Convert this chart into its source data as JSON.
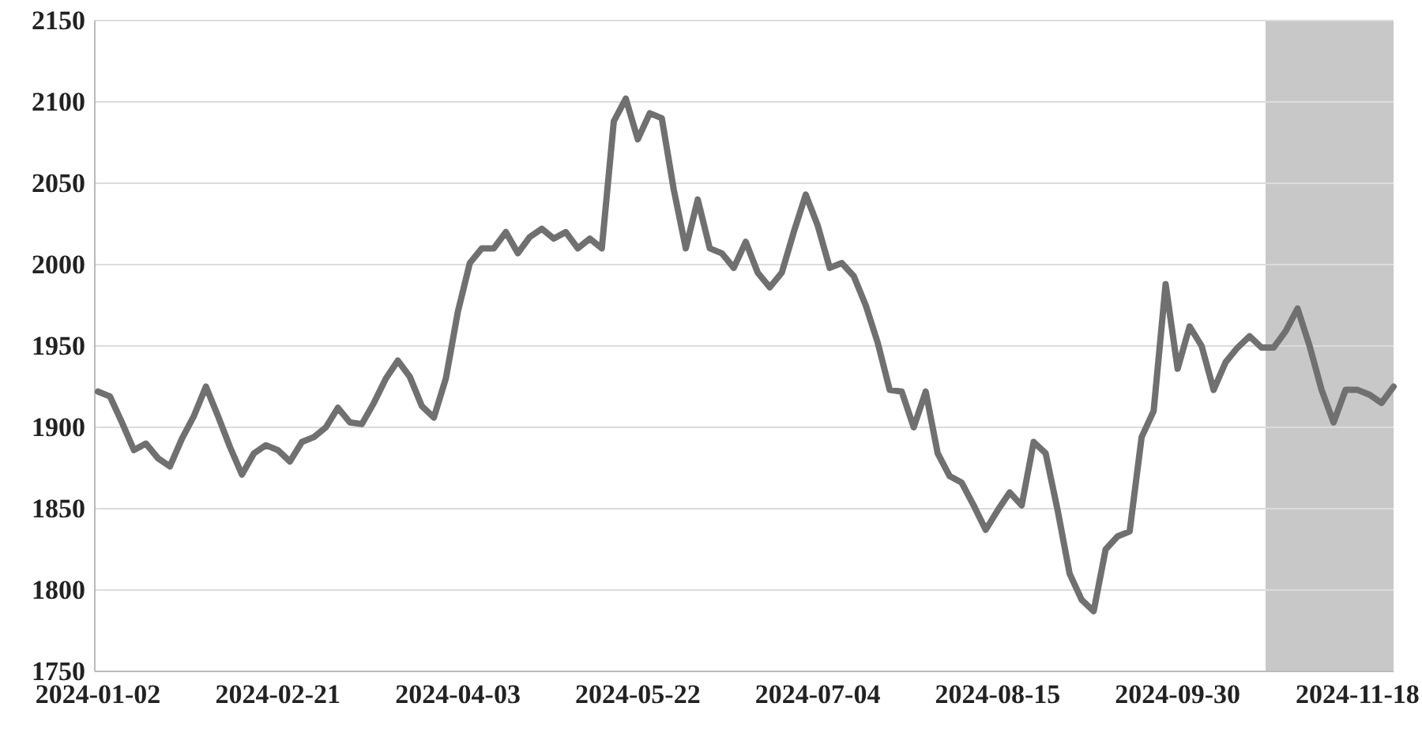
{
  "chart_data": {
    "type": "line",
    "categories": [
      "2024-01-02",
      null,
      null,
      null,
      null,
      null,
      null,
      null,
      null,
      null,
      null,
      null,
      null,
      null,
      null,
      "2024-02-21",
      null,
      null,
      null,
      null,
      null,
      null,
      null,
      null,
      null,
      null,
      null,
      null,
      null,
      null,
      "2024-04-03",
      null,
      null,
      null,
      null,
      null,
      null,
      null,
      null,
      null,
      null,
      null,
      null,
      null,
      null,
      "2024-05-22",
      null,
      null,
      null,
      null,
      null,
      null,
      null,
      null,
      null,
      null,
      null,
      null,
      null,
      null,
      "2024-07-04",
      null,
      null,
      null,
      null,
      null,
      null,
      null,
      null,
      null,
      null,
      null,
      null,
      null,
      null,
      "2024-08-15",
      null,
      null,
      null,
      null,
      null,
      null,
      null,
      null,
      null,
      null,
      null,
      null,
      null,
      null,
      "2024-09-30",
      null,
      null,
      null,
      null,
      null,
      null,
      null,
      null,
      null,
      null,
      null,
      null,
      null,
      null,
      "2024-11-18",
      null,
      null,
      null
    ],
    "series": [
      {
        "color": "#707070",
        "values": [
          1922,
          1919,
          1903,
          1886,
          1890,
          1881,
          1876,
          1893,
          1907,
          1925,
          1907,
          1888,
          1871,
          1884,
          1889,
          1886,
          1879,
          1891,
          1894,
          1900,
          1912,
          1903,
          1902,
          1915,
          1930,
          1941,
          1931,
          1913,
          1906,
          1930,
          1971,
          2001,
          2010,
          2010,
          2020,
          2007,
          2017,
          2022,
          2016,
          2020,
          2010,
          2016,
          2010,
          2088,
          2102,
          2077,
          2093,
          2090,
          2046,
          2010,
          2040,
          2010,
          2007,
          1998,
          2014,
          1995,
          1986,
          1995,
          2020,
          2043,
          2024,
          1998,
          2001,
          1993,
          1975,
          1952,
          1923,
          1922,
          1900,
          1922,
          1884,
          1870,
          1866,
          1852,
          1837,
          1849,
          1860,
          1852,
          1891,
          1884,
          1849,
          1810,
          1794,
          1787,
          1825,
          1833,
          1836,
          1894,
          1910,
          1988,
          1936,
          1962,
          1950,
          1923,
          1940,
          1949,
          1956,
          1949,
          1949,
          1959,
          1973,
          1950,
          1923,
          1903,
          1923,
          1923,
          1920,
          1915,
          1925
        ]
      }
    ],
    "ylim": [
      1750,
      2150
    ],
    "yticks": [
      1750,
      1800,
      1850,
      1900,
      1950,
      2000,
      2050,
      2100,
      2150
    ],
    "grid": "y",
    "marker": "none",
    "line_style": "solid"
  }
}
